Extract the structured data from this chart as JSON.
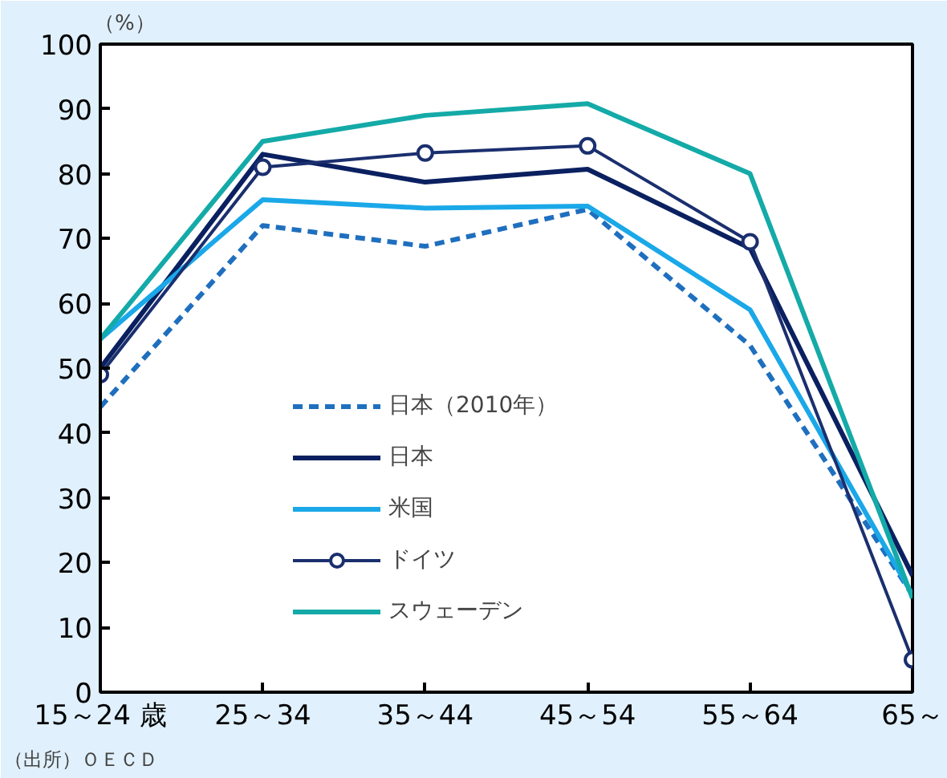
{
  "chart_data": {
    "type": "line",
    "ylabel": "（%）",
    "categories": [
      "15～24 歳",
      "25～34",
      "35～44",
      "45～54",
      "55～64",
      "65～"
    ],
    "ylim": [
      0,
      100
    ],
    "yticks": [
      0,
      10,
      20,
      30,
      40,
      50,
      60,
      70,
      80,
      90,
      100
    ],
    "grid": false,
    "legend": "center",
    "marker": "none",
    "series": [
      {
        "name": "日本（2010年）",
        "color": "#1f6fbf",
        "line_style": "dashed",
        "values": [
          44,
          72,
          68.8,
          74.5,
          53.5,
          15
        ]
      },
      {
        "name": "日本",
        "color": "#0a2060",
        "values": [
          50,
          83,
          78.7,
          80.7,
          68.5,
          18
        ]
      },
      {
        "name": "米国",
        "color": "#1aa8e8",
        "values": [
          54.5,
          76,
          74.7,
          75,
          59,
          15
        ]
      },
      {
        "name": "ドイツ",
        "color": "#1a2f6e",
        "marker": "circle",
        "values": [
          49,
          81,
          83.2,
          84.3,
          69.5,
          5
        ]
      },
      {
        "name": "スウェーデン",
        "color": "#14aaa8",
        "values": [
          54.5,
          85,
          89,
          90.8,
          80,
          14.5
        ]
      }
    ],
    "annotations": [
      "（出所）ＯＥＣＤ"
    ]
  }
}
